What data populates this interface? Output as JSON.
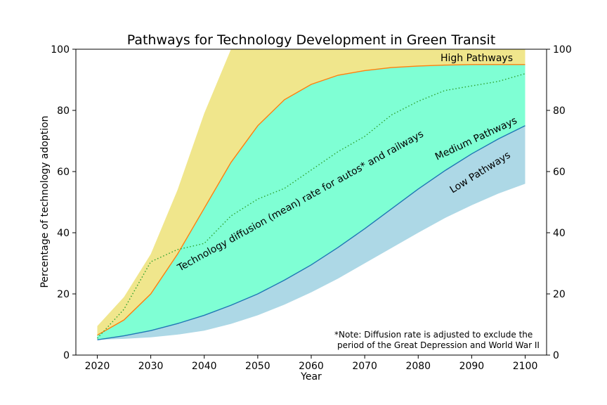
{
  "chart_data": {
    "type": "area",
    "title": "Pathways for Technology Development in Green Transit",
    "xlabel": "Year",
    "ylabel": "Percentage of technology adoption",
    "xlim": [
      2016,
      2104
    ],
    "ylim": [
      0,
      100
    ],
    "x_ticks": [
      2020,
      2030,
      2040,
      2050,
      2060,
      2070,
      2080,
      2090,
      2100
    ],
    "y_ticks": [
      0,
      20,
      40,
      60,
      80,
      100
    ],
    "grid": false,
    "right_axis_ticks": true,
    "x": [
      2020,
      2025,
      2030,
      2035,
      2040,
      2045,
      2050,
      2055,
      2060,
      2065,
      2070,
      2075,
      2080,
      2085,
      2090,
      2095,
      2100
    ],
    "bands": [
      {
        "label": "High Pathways",
        "color": "#f0e68c",
        "lower": [
          6.5,
          11.5,
          20,
          33,
          48,
          63,
          75,
          83.5,
          88.5,
          91.5,
          93,
          94,
          94.5,
          94.8,
          95,
          95,
          95
        ],
        "upper": [
          9.5,
          19,
          33,
          54,
          79,
          100,
          100,
          100,
          100,
          100,
          100,
          100,
          100,
          100,
          100,
          100,
          100
        ]
      },
      {
        "label": "Medium Pathways",
        "color": "#7fffd4",
        "lower": [
          5,
          6.3,
          8,
          10.3,
          13,
          16.3,
          20,
          24.5,
          29.5,
          35.2,
          41.3,
          47.8,
          54.3,
          60.3,
          65.8,
          70.7,
          75
        ],
        "upper": [
          6.5,
          11.5,
          20,
          33,
          48,
          63,
          75,
          83.5,
          88.5,
          91.5,
          93,
          94,
          94.5,
          94.8,
          95,
          95,
          95
        ]
      },
      {
        "label": "Low Pathways",
        "color": "#add8e6",
        "lower": [
          5,
          5.3,
          5.8,
          6.7,
          8,
          10.2,
          13,
          16.5,
          20.5,
          25,
          30,
          35,
          40,
          44.8,
          49,
          52.8,
          56
        ],
        "upper": [
          5,
          6.3,
          8,
          10.3,
          13,
          16.3,
          20,
          24.5,
          29.5,
          35.2,
          41.3,
          47.8,
          54.3,
          60.3,
          65.8,
          70.7,
          75
        ]
      }
    ],
    "lines": [
      {
        "color": "#ff7f0e",
        "values": [
          6.5,
          11.5,
          20,
          33,
          48,
          63,
          75,
          83.5,
          88.5,
          91.5,
          93,
          94,
          94.5,
          94.8,
          95,
          95,
          95
        ]
      },
      {
        "color": "#1f77b4",
        "values": [
          5,
          6.3,
          8,
          10.3,
          13,
          16.3,
          20,
          24.5,
          29.5,
          35.2,
          41.3,
          47.8,
          54.3,
          60.3,
          65.8,
          70.7,
          75
        ]
      },
      {
        "label": "Technology diffusion (mean) rate for autos* and railways",
        "color": "#2ca02c",
        "style": "dotted",
        "x": [
          2020,
          2025,
          2030,
          2035,
          2040,
          2045,
          2050,
          2055,
          2060,
          2065,
          2070,
          2075,
          2080,
          2085,
          2090,
          2095,
          2100
        ],
        "values": [
          5.5,
          15,
          30.5,
          34.5,
          36.5,
          45.5,
          51,
          54.5,
          60.5,
          66.5,
          71.5,
          78.5,
          83,
          86.5,
          88,
          89.5,
          92
        ]
      }
    ],
    "annotations": {
      "high": "High Pathways",
      "medium": "Medium Pathways",
      "low": "Low Pathways",
      "diffusion": "Technology diffusion (mean) rate for autos* and railways",
      "note_line1": "*Note: Diffusion rate is adjusted to exclude the",
      "note_line2": "period of the Great Depression and World War II"
    }
  }
}
